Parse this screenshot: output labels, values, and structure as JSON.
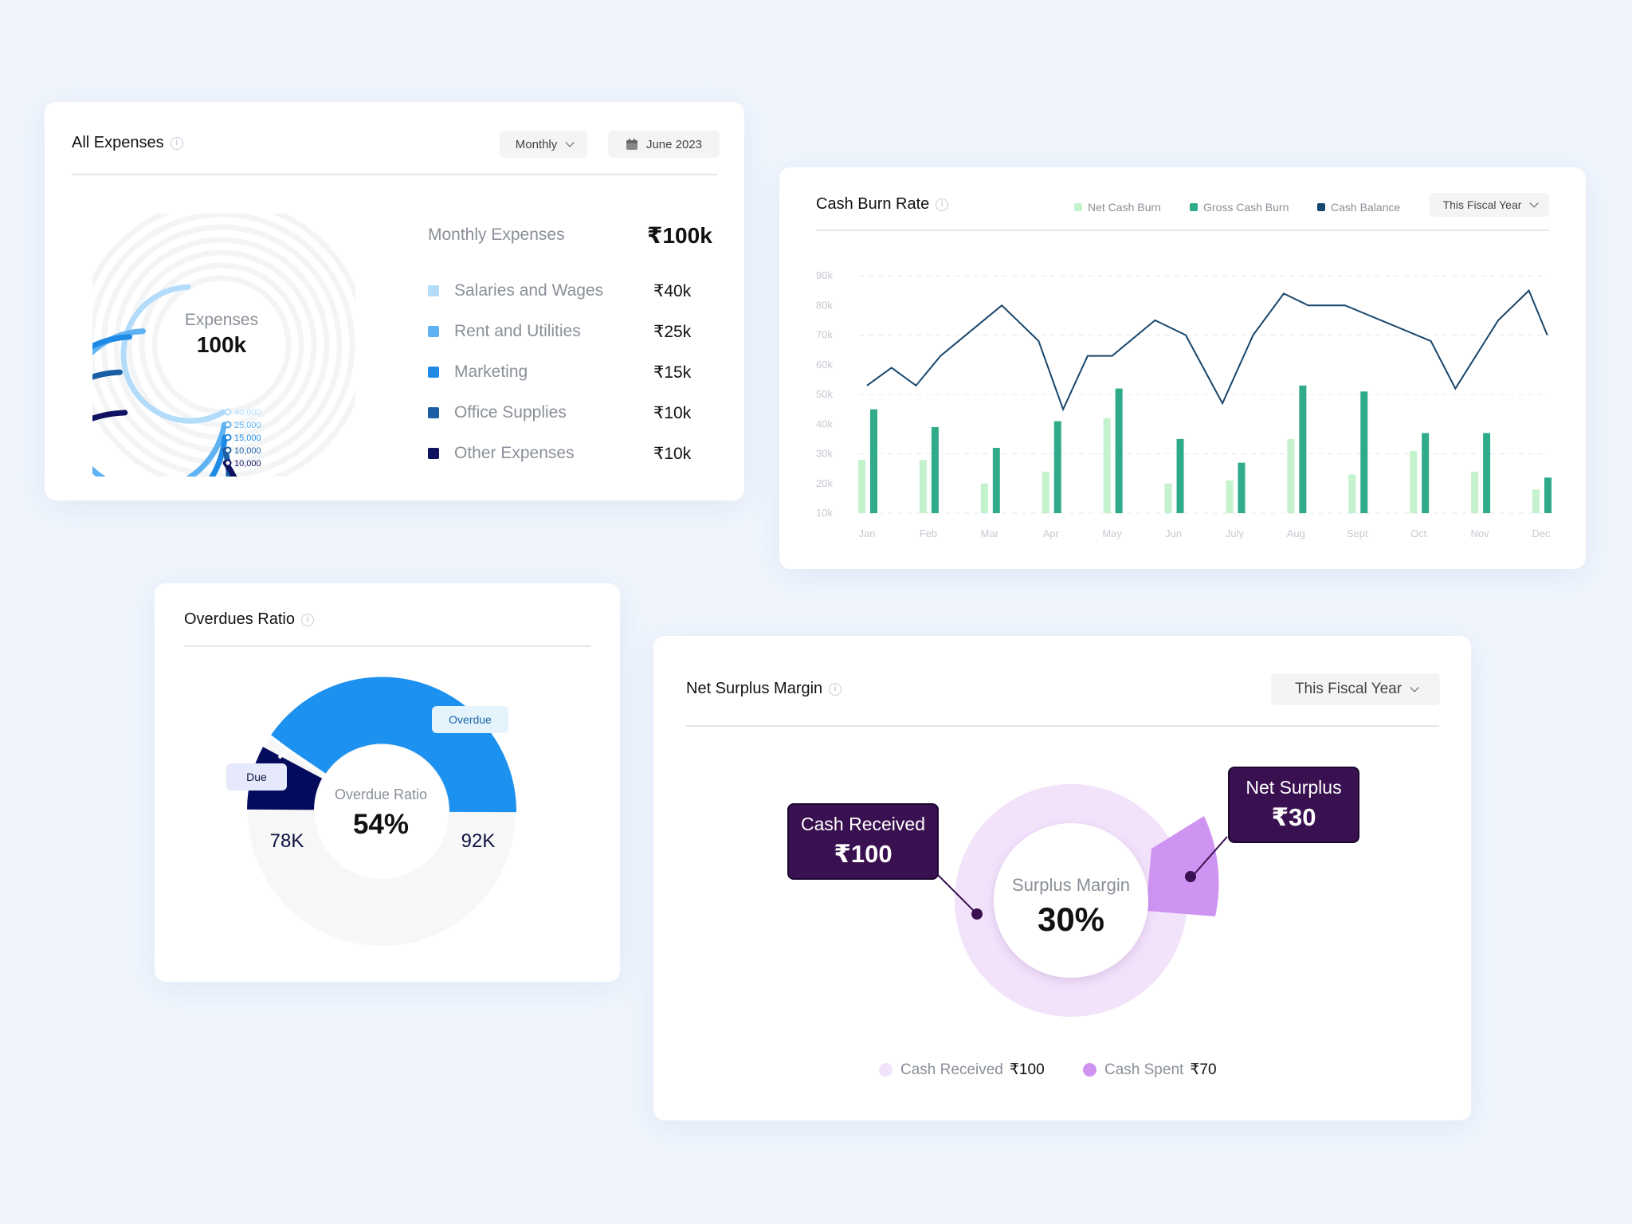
{
  "all_expenses": {
    "title": "All Expenses",
    "period_select": "Monthly",
    "date_select": "June 2023",
    "center_label": "Expenses",
    "center_value": "100k",
    "summary_label": "Monthly Expenses",
    "summary_value": "₹100k",
    "ring_labels": [
      "40,000",
      "25,000",
      "15,000",
      "10,000",
      "10,000"
    ],
    "items": [
      {
        "label": "Salaries and Wages",
        "value": "₹40k",
        "color": "#b3dcfb"
      },
      {
        "label": "Rent and Utilities",
        "value": "₹25k",
        "color": "#5fb3f2"
      },
      {
        "label": "Marketing",
        "value": "₹15k",
        "color": "#1f8ae6"
      },
      {
        "label": "Office Supplies",
        "value": "₹10k",
        "color": "#1a5fa6"
      },
      {
        "label": "Other Expenses",
        "value": "₹10k",
        "color": "#0e1260"
      }
    ]
  },
  "cash_burn": {
    "title": "Cash Burn Rate",
    "legend": [
      {
        "label": "Net Cash Burn",
        "color": "#c4f2cc"
      },
      {
        "label": "Gross Cash Burn",
        "color": "#2fab8a"
      },
      {
        "label": "Cash Balance",
        "color": "#17456b"
      }
    ],
    "period_select": "This Fiscal Year"
  },
  "chart_data": {
    "type": "bar",
    "categories": [
      "Jan",
      "Feb",
      "Mar",
      "Apr",
      "May",
      "Jun",
      "July",
      "Aug",
      "Sept",
      "Oct",
      "Nov",
      "Dec"
    ],
    "y_ticks": [
      "90k",
      "80k",
      "70k",
      "60k",
      "50k",
      "40k",
      "30k",
      "20k",
      "10k"
    ],
    "ylim": [
      10,
      90
    ],
    "series": [
      {
        "name": "Net Cash Burn",
        "type": "bar",
        "values": [
          28,
          28,
          20,
          24,
          42,
          20,
          21,
          35,
          23,
          31,
          24,
          18
        ]
      },
      {
        "name": "Gross Cash Burn",
        "type": "bar",
        "values": [
          45,
          39,
          32,
          41,
          52,
          35,
          27,
          53,
          51,
          37,
          37,
          22
        ]
      },
      {
        "name": "Cash Balance",
        "type": "line",
        "x": [
          0,
          0.4,
          0.8,
          1.2,
          2.2,
          2.8,
          3.2,
          3.6,
          4.0,
          4.7,
          5.2,
          5.8,
          6.3,
          6.8,
          7.2,
          7.8,
          9.2,
          9.6,
          10.3,
          10.8,
          11.1
        ],
        "values": [
          53,
          59,
          53,
          63,
          80,
          68,
          45,
          63,
          63,
          75,
          70,
          47,
          70,
          84,
          80,
          80,
          68,
          52,
          75,
          85,
          70
        ]
      }
    ]
  },
  "overdues": {
    "title": "Overdues Ratio",
    "center_label": "Overdue Ratio",
    "center_value": "54%",
    "due_tag": "Due",
    "overdue_tag": "Overdue",
    "left_value": "78K",
    "right_value": "92K"
  },
  "net_surplus": {
    "title": "Net Surplus Margin",
    "period_select": "This Fiscal Year",
    "center_label": "Surplus Margin",
    "center_value": "30%",
    "cash_received_box": {
      "label": "Cash Received",
      "value": "₹100"
    },
    "net_surplus_box": {
      "label": "Net Surplus",
      "value": "₹30"
    },
    "legend": [
      {
        "label": "Cash Received",
        "value": "₹100",
        "color": "#f2e2fa"
      },
      {
        "label": "Cash Spent",
        "value": "₹70",
        "color": "#cf93f2"
      }
    ]
  }
}
